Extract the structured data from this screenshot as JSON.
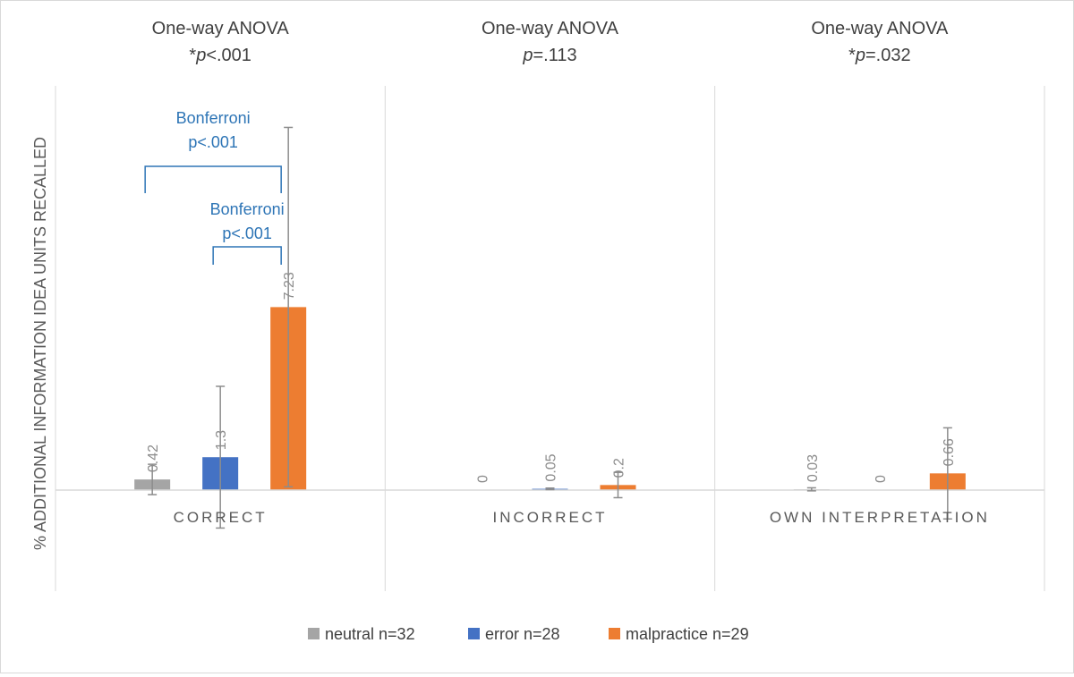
{
  "chart_data": {
    "type": "bar",
    "ylabel": "% ADDITIONAL INFORMATION IDEA UNITS RECALLED",
    "categories": [
      "CORRECT",
      "INCORRECT",
      "OWN INTERPRETATION"
    ],
    "panel_titles": [
      {
        "line1": "One-way ANOVA",
        "star": "*",
        "p_italic": "p",
        "p_rest": "<.001"
      },
      {
        "line1": "One-way ANOVA",
        "star": "",
        "p_italic": "p",
        "p_rest": "=.113"
      },
      {
        "line1": "One-way ANOVA",
        "star": "*",
        "p_italic": "p",
        "p_rest": "=.032"
      }
    ],
    "series": [
      {
        "name": "neutral n=32",
        "color": "#a5a5a5",
        "values": [
          0.42,
          0,
          0.03
        ],
        "labels": [
          "0.42",
          "0",
          "0.03"
        ],
        "error": [
          0.6,
          0,
          0.06
        ]
      },
      {
        "name": "error n=28",
        "color": "#4472c4",
        "values": [
          1.3,
          0.05,
          0
        ],
        "labels": [
          "1.3",
          "0.05",
          "0"
        ],
        "error": [
          2.8,
          0.03,
          0
        ]
      },
      {
        "name": "malpractice n=29",
        "color": "#ed7d31",
        "values": [
          7.23,
          0.2,
          0.66
        ],
        "labels": [
          "7.23",
          "0.2",
          "0.66"
        ],
        "error": [
          7.1,
          0.5,
          1.8
        ]
      }
    ],
    "ylim": [
      -4,
      16
    ],
    "grid": false,
    "legend_position": "bottom",
    "annotations": [
      {
        "panel": 0,
        "from_series": 0,
        "to_series": 2,
        "line1": "Bonferroni",
        "line2": "p<.001",
        "level": "high"
      },
      {
        "panel": 0,
        "from_series": 1,
        "to_series": 2,
        "line1": "Bonferroni",
        "line2": "p<.001",
        "level": "low"
      }
    ]
  }
}
